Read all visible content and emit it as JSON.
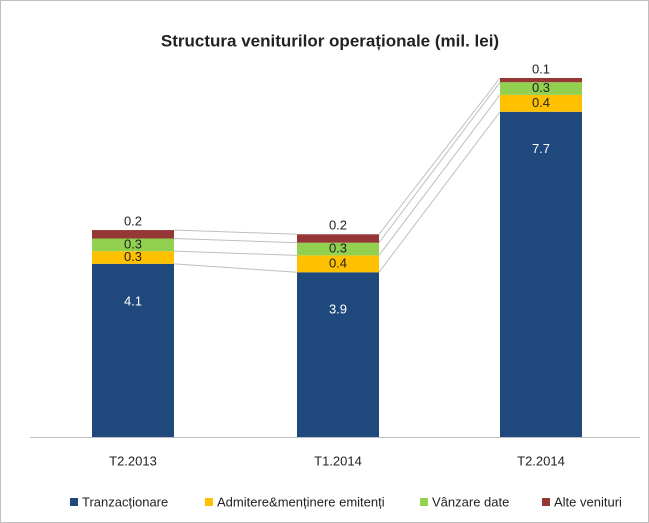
{
  "chart_data": {
    "type": "stacked_bar",
    "title": "Structura veniturilor operaționale (mil. lei)",
    "categories": [
      "T2.2013",
      "T1.2014",
      "T2.2014"
    ],
    "series": [
      {
        "name": "Tranzacționare",
        "color": "#1f487c",
        "values": [
          4.1,
          3.9,
          7.7
        ]
      },
      {
        "name": "Admitere&menținere emitenți",
        "color": "#ffc000",
        "values": [
          0.3,
          0.4,
          0.4
        ]
      },
      {
        "name": "Vânzare date",
        "color": "#92d050",
        "values": [
          0.3,
          0.3,
          0.3
        ]
      },
      {
        "name": "Alte venituri",
        "color": "#953735",
        "values": [
          0.2,
          0.2,
          0.1
        ]
      }
    ],
    "legend": "bottom"
  }
}
